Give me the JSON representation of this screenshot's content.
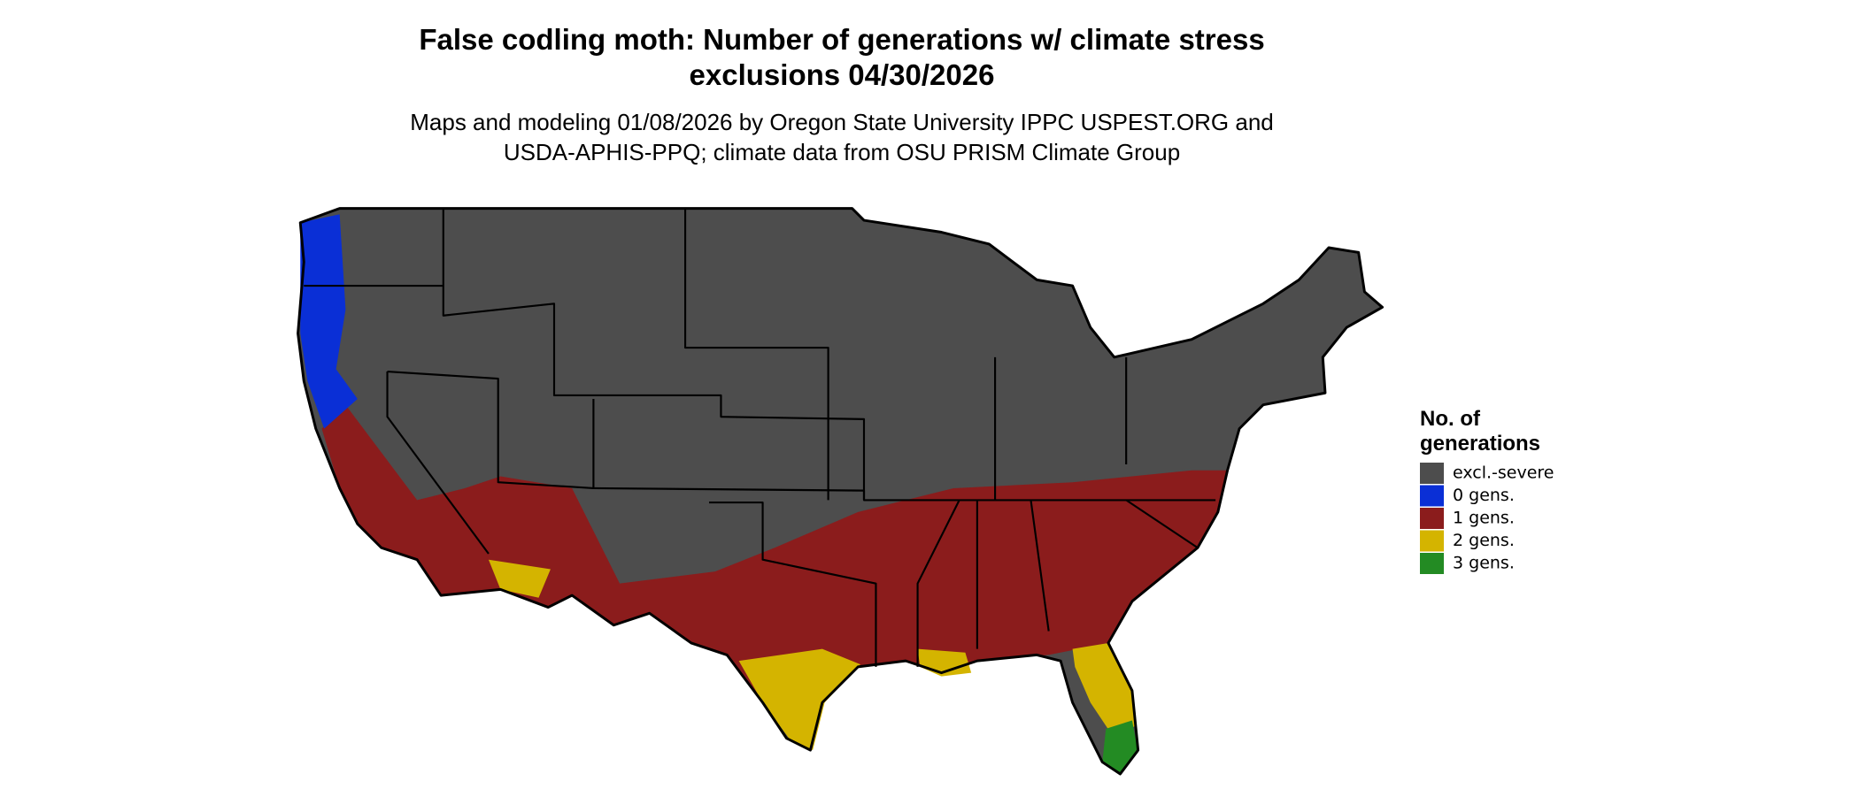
{
  "title": [
    "False codling moth: Number of generations w/ climate stress",
    "exclusions 04/30/2026"
  ],
  "subtitle": [
    "Maps and modeling 01/08/2026 by Oregon State University IPPC USPEST.ORG and",
    "USDA-APHIS-PPQ; climate data from OSU PRISM Climate Group"
  ],
  "legend": {
    "title": [
      "No. of",
      "generations"
    ],
    "items": [
      {
        "label": "excl.-severe",
        "color": "#4d4d4d"
      },
      {
        "label": "0 gens.",
        "color": "#0a2fd6"
      },
      {
        "label": "1 gens.",
        "color": "#8b1c1c"
      },
      {
        "label": "2 gens.",
        "color": "#d4b400"
      },
      {
        "label": "3 gens.",
        "color": "#238b23"
      }
    ]
  }
}
